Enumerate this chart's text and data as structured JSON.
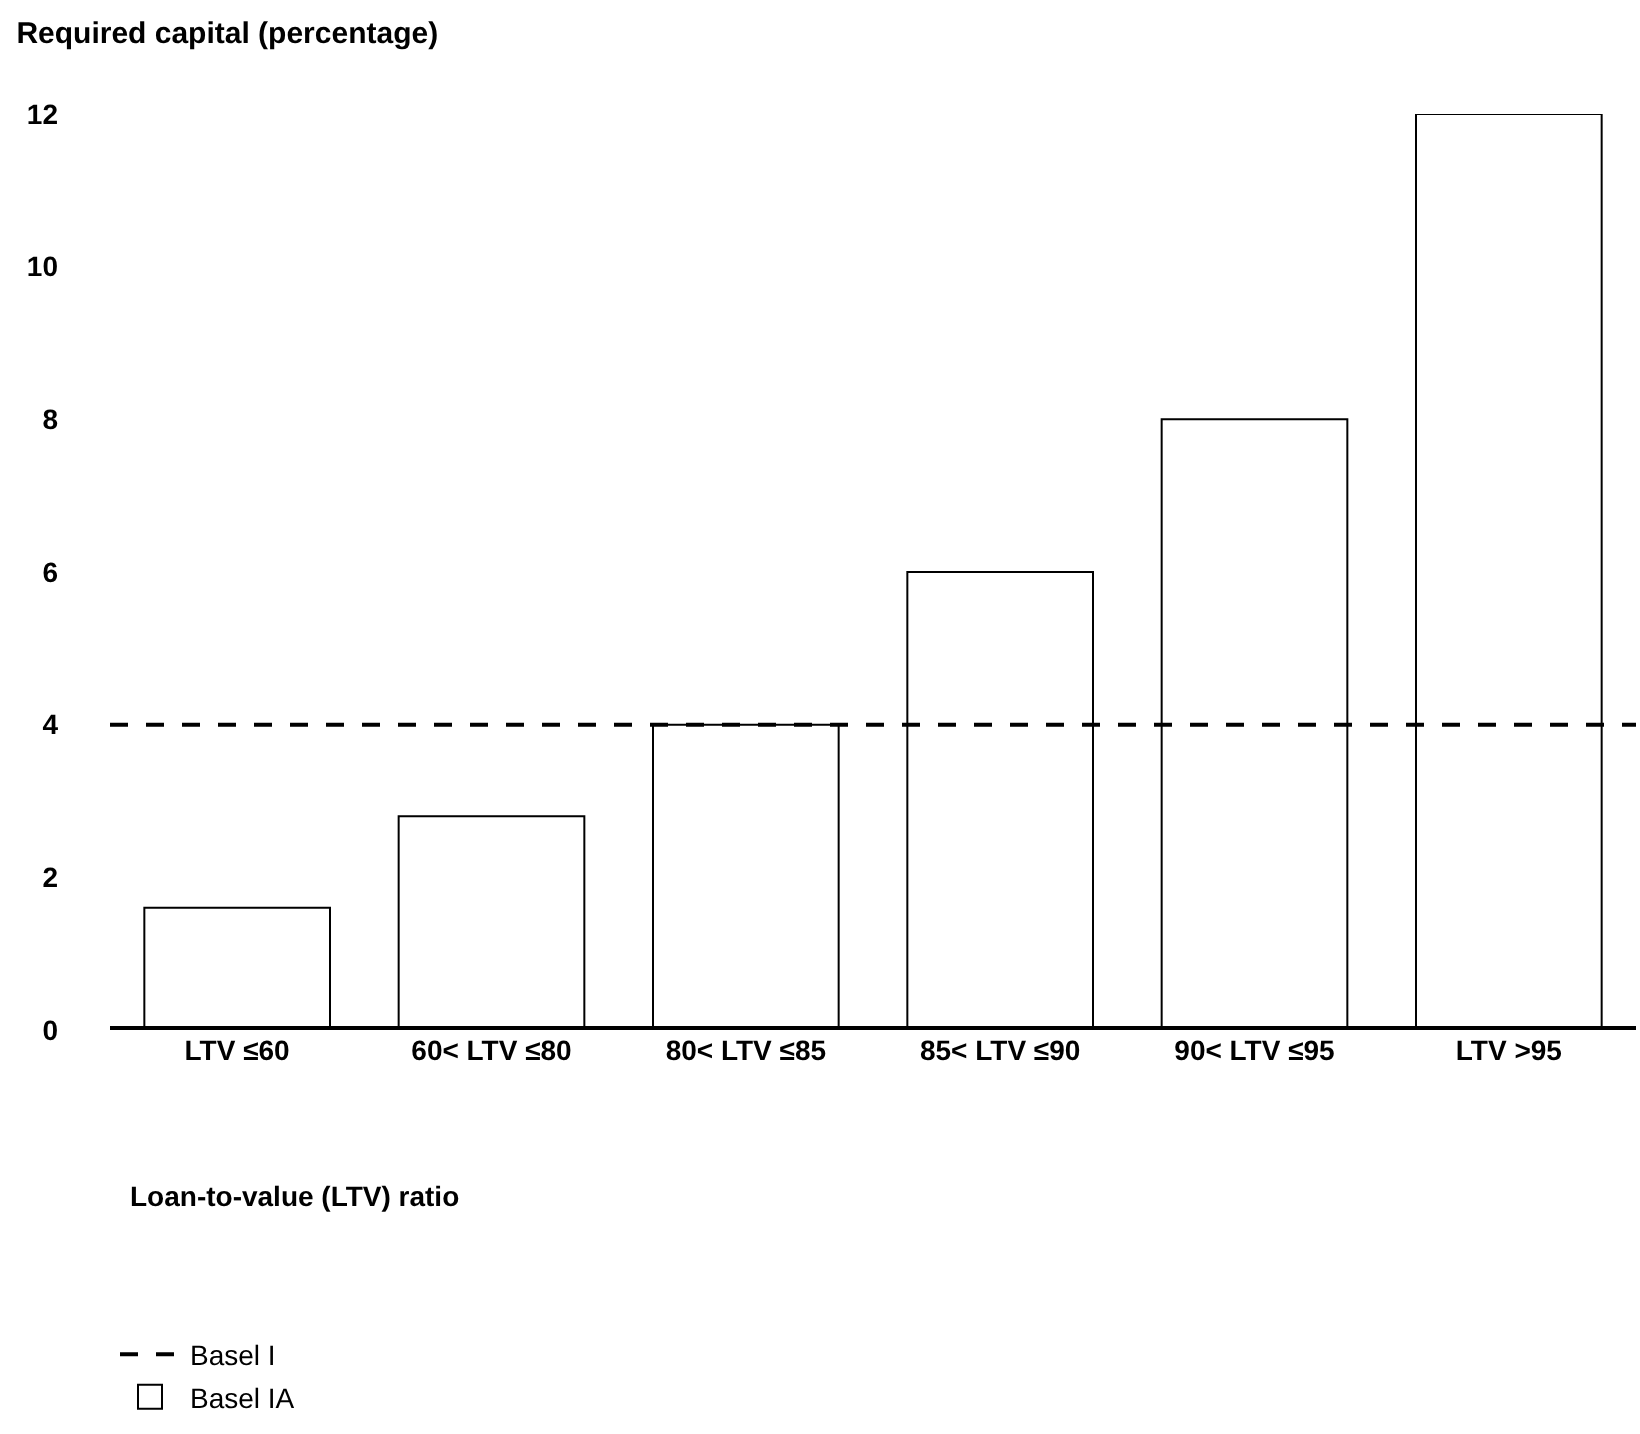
{
  "chart_data": {
    "type": "bar",
    "title": "Required capital (percentage)",
    "xlabel": "Loan-to-value (LTV) ratio",
    "categories": [
      "LTV ≤60",
      "60< LTV ≤80",
      "80< LTV ≤85",
      "85< LTV ≤90",
      "90< LTV ≤95",
      "LTV >95"
    ],
    "series": [
      {
        "name": "Basel IA",
        "color": "#ffffff",
        "values": [
          1.6,
          2.8,
          4,
          6,
          8,
          12
        ]
      }
    ],
    "ref_lines": [
      {
        "axis": "y",
        "value": 4,
        "label": "Basel I",
        "color": "#000000",
        "line_style": "dashed"
      }
    ],
    "ylim": [
      0,
      12
    ],
    "yticks": [
      0,
      2,
      4,
      6,
      8,
      10,
      12
    ],
    "grid": false,
    "legend": "bottom left"
  }
}
